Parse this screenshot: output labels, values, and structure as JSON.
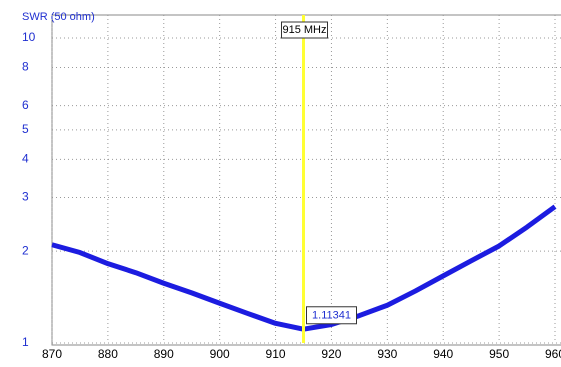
{
  "chart_data": {
    "type": "line",
    "y_label": "SWR (50 ohm)",
    "x": [
      870,
      875,
      880,
      885,
      890,
      895,
      900,
      905,
      910,
      915,
      920,
      925,
      930,
      935,
      940,
      945,
      950,
      955,
      960
    ],
    "series": [
      {
        "color": "#1c1ce0",
        "values": [
          2.1,
          1.98,
          1.82,
          1.7,
          1.57,
          1.46,
          1.35,
          1.25,
          1.16,
          1.11,
          1.15,
          1.23,
          1.33,
          1.48,
          1.66,
          1.86,
          2.08,
          2.4,
          2.8
        ]
      }
    ],
    "xlim": [
      870,
      960
    ],
    "xticks": [
      870,
      880,
      890,
      900,
      910,
      920,
      930,
      940,
      950,
      960
    ],
    "ylim": [
      1,
      10
    ],
    "yticks": [
      1,
      2,
      3,
      4,
      5,
      6,
      8,
      10
    ],
    "log_y": true,
    "grid": true,
    "annotations": [
      {
        "x": 915,
        "label": "915 MHz",
        "color": "#ffff33"
      }
    ],
    "marker_value": 1.11341
  }
}
